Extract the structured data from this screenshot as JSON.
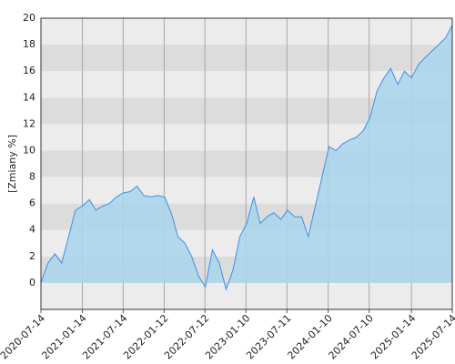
{
  "chart_data": {
    "type": "area",
    "y_label": "[Zmiany %]",
    "x": [
      "2020-07-14",
      "2020-08-14",
      "2020-09-14",
      "2020-10-14",
      "2020-11-14",
      "2020-12-14",
      "2021-01-14",
      "2021-02-14",
      "2021-03-14",
      "2021-04-14",
      "2021-05-14",
      "2021-06-14",
      "2021-07-14",
      "2021-08-14",
      "2021-09-14",
      "2021-10-14",
      "2021-11-14",
      "2021-12-14",
      "2022-01-14",
      "2022-02-14",
      "2022-03-14",
      "2022-04-14",
      "2022-05-14",
      "2022-06-14",
      "2022-07-14",
      "2022-08-14",
      "2022-09-14",
      "2022-10-14",
      "2022-11-14",
      "2022-12-14",
      "2023-01-14",
      "2023-02-14",
      "2023-03-14",
      "2023-04-14",
      "2023-05-14",
      "2023-06-14",
      "2023-07-14",
      "2023-08-14",
      "2023-09-14",
      "2023-10-14",
      "2023-11-14",
      "2023-12-14",
      "2024-01-14",
      "2024-02-14",
      "2024-03-14",
      "2024-04-14",
      "2024-05-14",
      "2024-06-14",
      "2024-07-14",
      "2024-08-14",
      "2024-09-14",
      "2024-10-14",
      "2024-11-14",
      "2024-12-14",
      "2025-01-14",
      "2025-02-14",
      "2025-03-14",
      "2025-04-14",
      "2025-05-14",
      "2025-06-14",
      "2025-07-14"
    ],
    "values": [
      0,
      1.5,
      2.2,
      1.5,
      3.5,
      5.5,
      5.8,
      6.3,
      5.5,
      5.8,
      6.0,
      6.5,
      6.8,
      6.9,
      7.3,
      6.6,
      6.5,
      6.6,
      6.5,
      5.2,
      3.5,
      3.0,
      2.0,
      0.5,
      -0.3,
      2.5,
      1.5,
      -0.5,
      1.0,
      3.5,
      4.5,
      6.5,
      4.5,
      5.0,
      5.3,
      4.8,
      5.5,
      5.0,
      5.0,
      3.5,
      5.8,
      8.0,
      10.3,
      10.0,
      10.5,
      10.8,
      11.0,
      11.5,
      12.5,
      14.5,
      15.5,
      16.2,
      15.0,
      16.0,
      15.5,
      16.5,
      17.0,
      17.5,
      18.0,
      18.5,
      19.5
    ],
    "color": "#3d8fe6",
    "fill_color": "#a9d5ec",
    "xlim": [
      "2020-07-14",
      "2025-07-14"
    ],
    "xticks": [
      "2020-07-14",
      "2021-01-14",
      "2021-07-14",
      "2022-01-12",
      "2022-07-12",
      "2023-01-10",
      "2023-07-11",
      "2024-01-10",
      "2024-07-10",
      "2025-01-14",
      "2025-07-14"
    ],
    "ylim": [
      -2,
      20
    ],
    "yticks": [
      0,
      2,
      4,
      6,
      8,
      10,
      12,
      14,
      16,
      18,
      20
    ],
    "grid": true
  }
}
